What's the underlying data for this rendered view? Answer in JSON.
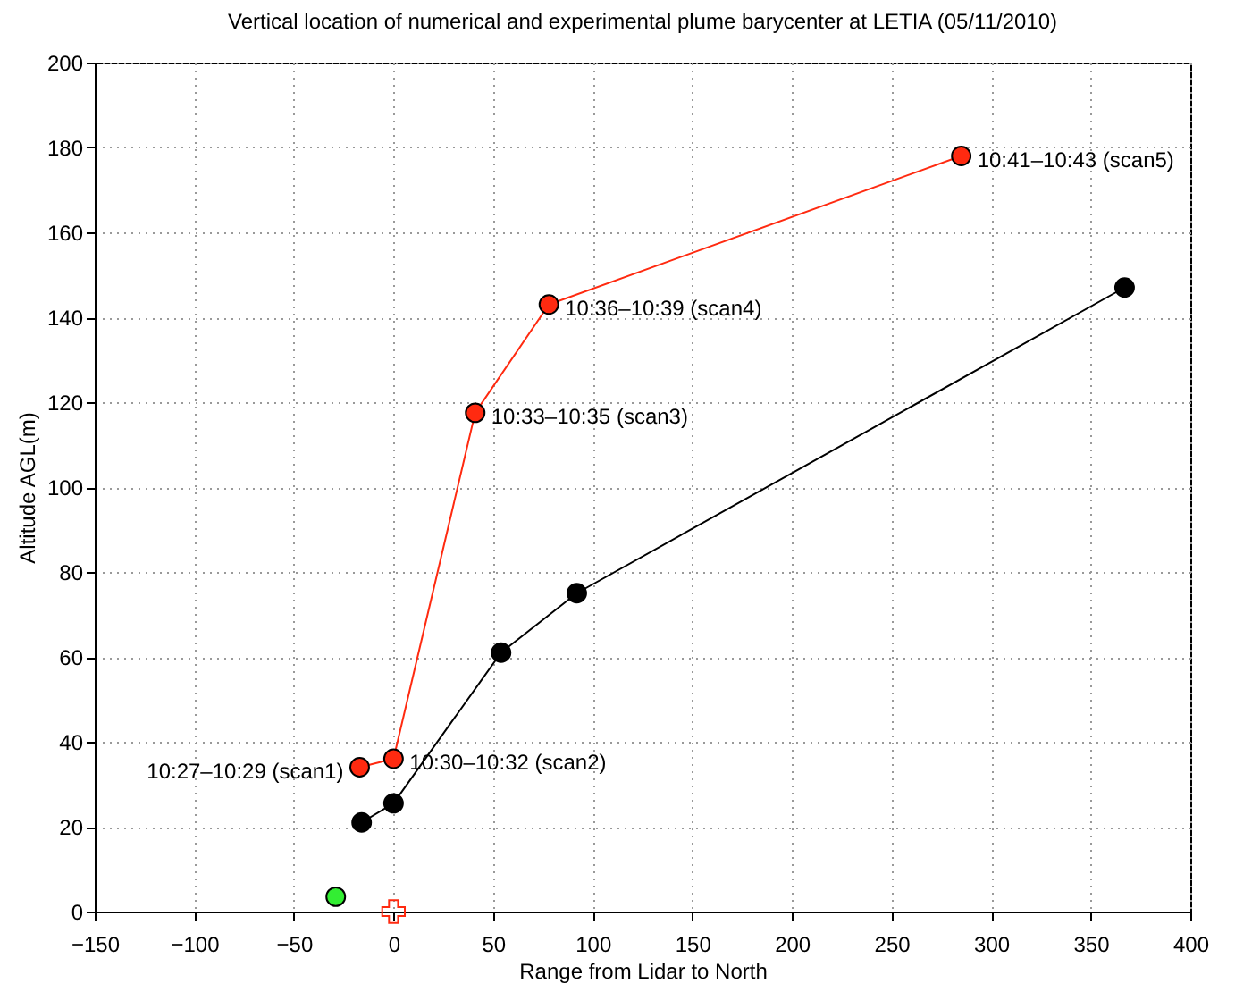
{
  "chart_data": {
    "type": "line",
    "title": "Vertical location of numerical and experimental plume barycenter at LETIA (05/11/2010)",
    "xlabel": "Range from Lidar to North",
    "ylabel": "Altitude AGL(m)",
    "xlim": [
      -150,
      400
    ],
    "xticks": [
      -150,
      -100,
      -50,
      0,
      50,
      100,
      150,
      200,
      250,
      300,
      350,
      400
    ],
    "ylim": [
      0,
      200
    ],
    "yticks": [
      0,
      20,
      40,
      60,
      80,
      100,
      120,
      140,
      160,
      180,
      200
    ],
    "grid": true,
    "marker": "circle",
    "line_style": "solid",
    "series": [
      {
        "color": "#ff2a10",
        "x": [
          -17,
          0,
          41,
          78,
          285
        ],
        "values": [
          34,
          36,
          117.5,
          143,
          178
        ]
      },
      {
        "color": "#000000",
        "x": [
          -16,
          0,
          54,
          92,
          367
        ],
        "values": [
          21,
          25.5,
          61,
          75,
          147
        ]
      },
      {
        "type": "scatter",
        "color": "#33ee33",
        "x": [
          -29
        ],
        "values": [
          3.5
        ]
      },
      {
        "type": "scatter",
        "color": "#ff2a10",
        "marker": "cross",
        "x": [
          0
        ],
        "values": [
          0
        ]
      }
    ],
    "annotations": [
      {
        "text": "10:27–10:29 (scan1)",
        "x": -17,
        "y": 34
      },
      {
        "text": "10:30–10:32 (scan2)",
        "x": 0,
        "y": 36
      },
      {
        "text": "10:33–10:35 (scan3)",
        "x": 41,
        "y": 117.5
      },
      {
        "text": "10:36–10:39 (scan4)",
        "x": 78,
        "y": 143
      },
      {
        "text": "10:41–10:43 (scan5)",
        "x": 285,
        "y": 178
      }
    ]
  }
}
